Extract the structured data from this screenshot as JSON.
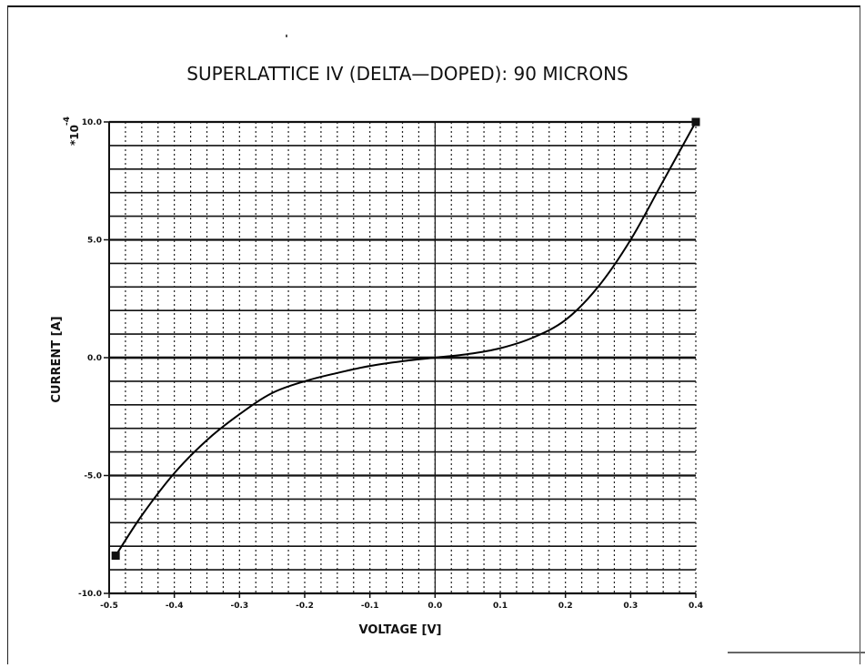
{
  "chart_data": {
    "type": "line",
    "title": "SUPERLATTICE IV (DELTA—DOPED):  90 MICRONS",
    "xlabel": "VOLTAGE [V]",
    "ylabel": "CURRENT [A]",
    "y_multiplier": "*10",
    "y_exponent": "-4",
    "xlim": [
      -0.5,
      0.4
    ],
    "ylim": [
      -10.0,
      10.0
    ],
    "x_ticks": [
      {
        "value": -0.5,
        "label": "-0.5"
      },
      {
        "value": -0.4,
        "label": "-0.4"
      },
      {
        "value": -0.3,
        "label": "-0.3"
      },
      {
        "value": -0.2,
        "label": "-0.2"
      },
      {
        "value": -0.1,
        "label": "-0.1"
      },
      {
        "value": 0.0,
        "label": "0.0"
      },
      {
        "value": 0.1,
        "label": "0.1"
      },
      {
        "value": 0.2,
        "label": "0.2"
      },
      {
        "value": 0.3,
        "label": "0.3"
      },
      {
        "value": 0.4,
        "label": "0.4"
      }
    ],
    "y_ticks": [
      {
        "value": 10.0,
        "label": "10.0"
      },
      {
        "value": 5.0,
        "label": "5.0"
      },
      {
        "value": 0.0,
        "label": "0.0"
      },
      {
        "value": -5.0,
        "label": "-5.0"
      },
      {
        "value": -10.0,
        "label": "-10.0"
      }
    ],
    "grid": true,
    "series": [
      {
        "x": [
          -0.49,
          -0.45,
          -0.4,
          -0.35,
          -0.3,
          -0.25,
          -0.2,
          -0.15,
          -0.1,
          -0.05,
          0.0,
          0.05,
          0.1,
          0.15,
          0.2,
          0.25,
          0.3,
          0.35,
          0.4
        ],
        "y": [
          -8.4,
          -6.7,
          -4.9,
          -3.5,
          -2.4,
          -1.5,
          -1.0,
          -0.65,
          -0.35,
          -0.15,
          0.0,
          0.15,
          0.4,
          0.85,
          1.6,
          3.0,
          5.0,
          7.5,
          10.0
        ]
      }
    ],
    "endpoints": [
      {
        "x": -0.49,
        "y": -8.4
      },
      {
        "x": 0.4,
        "y": 10.0
      }
    ]
  }
}
